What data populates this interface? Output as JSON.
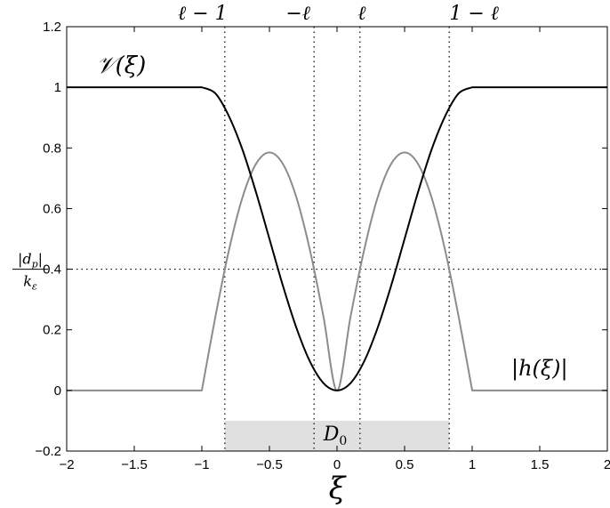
{
  "chart_data": {
    "type": "line",
    "xlabel": "ξ",
    "xlim": [
      -2,
      2
    ],
    "ylim": [
      -0.2,
      1.2
    ],
    "xticks": [
      -2,
      -1.5,
      -1,
      -0.5,
      0,
      0.5,
      1,
      1.5,
      2
    ],
    "xtick_labels": [
      "−2",
      "−1.5",
      "−1",
      "−0.5",
      "0",
      "0.5",
      "1",
      "1.5",
      "2"
    ],
    "yticks": [
      -0.2,
      0,
      0.2,
      0.4,
      0.6,
      0.8,
      1,
      1.2
    ],
    "ytick_labels": [
      "−0.2",
      "0",
      "0.2",
      "0.4",
      "0.6",
      "0.8",
      "1",
      "1.2"
    ],
    "grid": false,
    "colors": {
      "V": "#000000",
      "h": "#8c8c8c",
      "region": "#e0e0e0"
    },
    "series": [
      {
        "name": "𝒱(ξ)",
        "x": [
          -2,
          -1,
          -0.9,
          -0.8,
          -0.7,
          -0.6,
          -0.5,
          -0.4,
          -0.3,
          -0.2,
          -0.1,
          0,
          0.1,
          0.2,
          0.3,
          0.4,
          0.5,
          0.6,
          0.7,
          0.8,
          0.9,
          1,
          2
        ],
        "y": [
          1,
          1,
          0.98,
          0.905,
          0.795,
          0.655,
          0.5,
          0.345,
          0.206,
          0.095,
          0.024,
          0,
          0.024,
          0.095,
          0.206,
          0.345,
          0.5,
          0.655,
          0.795,
          0.905,
          0.98,
          1,
          1
        ]
      },
      {
        "name": "|h(ξ)|",
        "x": [
          -2,
          -1,
          -0.9,
          -0.8,
          -0.7,
          -0.6,
          -0.5,
          -0.4,
          -0.3,
          -0.2,
          -0.1,
          0,
          0.1,
          0.2,
          0.3,
          0.4,
          0.5,
          0.6,
          0.7,
          0.8,
          0.9,
          1,
          2
        ],
        "y": [
          0,
          0,
          0.243,
          0.462,
          0.636,
          0.747,
          0.785,
          0.747,
          0.636,
          0.462,
          0.243,
          0,
          0.243,
          0.462,
          0.636,
          0.747,
          0.785,
          0.747,
          0.636,
          0.462,
          0.243,
          0,
          0
        ]
      }
    ],
    "vlines": [
      -0.83,
      -0.17,
      0.17,
      0.83
    ],
    "vline_labels": [
      "ℓ − 1",
      "−ℓ",
      "ℓ",
      "1 − ℓ"
    ],
    "hline": 0.4,
    "hline_label": {
      "numerator": "|d",
      "numerator_sub": "p",
      "numerator_end": "|",
      "denominator": "k",
      "denominator_sub": "ε"
    },
    "region": {
      "x": [
        -0.83,
        0.83
      ],
      "y": [
        -0.2,
        -0.1
      ],
      "label": "D",
      "label_sub": "0"
    },
    "series_label_V": "𝒱(ξ)",
    "series_label_h": "|h(ξ)|"
  }
}
